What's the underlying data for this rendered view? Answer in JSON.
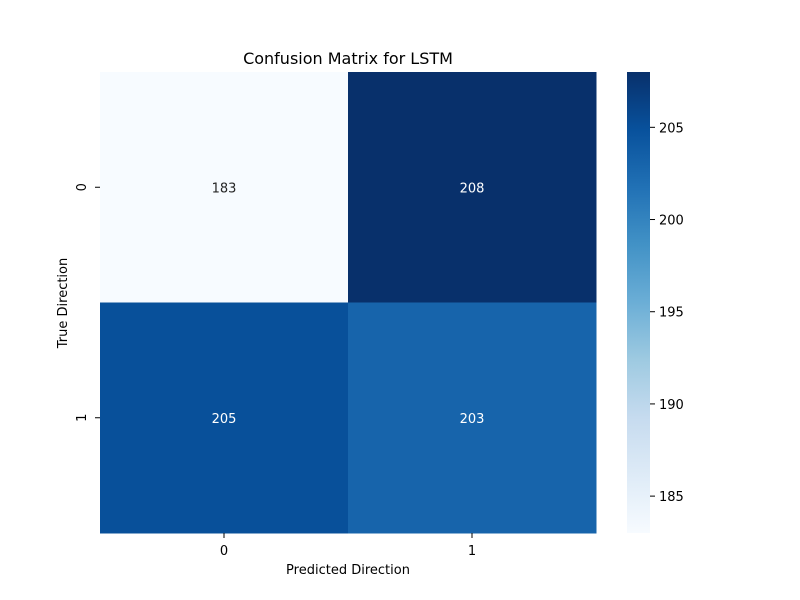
{
  "chart_data": {
    "type": "heatmap",
    "title": "Confusion Matrix for LSTM",
    "xlabel": "Predicted Direction",
    "ylabel": "True Direction",
    "x_categories": [
      "0",
      "1"
    ],
    "y_categories": [
      "0",
      "1"
    ],
    "values": [
      [
        183,
        208
      ],
      [
        205,
        203
      ]
    ],
    "colormap": "Blues",
    "color_min": 183,
    "color_max": 208,
    "colorbar_ticks": [
      185,
      190,
      195,
      200,
      205
    ],
    "colorbar_tick_labels": [
      "185",
      "190",
      "195",
      "200",
      "205"
    ],
    "grid": false,
    "colorbar_position": "right"
  }
}
